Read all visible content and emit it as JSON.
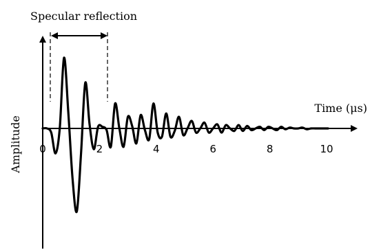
{
  "chart_data": {
    "type": "line",
    "title": "",
    "xlabel": "Time (μs)",
    "ylabel": "Amplitude",
    "xlim": [
      0,
      11.2
    ],
    "ylim": [
      -1,
      1
    ],
    "x_ticks": [
      "0",
      "2",
      "4",
      "6",
      "8",
      "10"
    ],
    "grid": false,
    "legend": "none",
    "annotation": {
      "text": "Specular reflection",
      "x_start": 0.3,
      "x_end": 2.3
    },
    "series": [
      {
        "x": [
          0,
          0.15,
          0.3,
          0.45,
          0.6,
          0.75,
          0.9,
          1.05,
          1.2,
          1.35,
          1.5,
          1.65,
          1.8,
          1.95,
          2.1,
          2.25,
          2.4,
          2.55,
          2.7,
          2.85,
          3.0,
          3.15,
          3.3,
          3.45,
          3.6,
          3.75,
          3.9,
          4.05,
          4.2,
          4.35,
          4.5,
          4.65,
          4.8,
          4.95,
          5.1,
          5.25,
          5.4,
          5.55,
          5.7,
          5.85,
          6.0,
          6.15,
          6.3,
          6.45,
          6.6,
          6.75,
          6.9,
          7.05,
          7.2,
          7.35,
          7.5,
          7.65,
          7.8,
          7.95,
          8.1,
          8.25,
          8.4,
          8.55,
          8.7,
          8.85,
          9.0,
          9.15,
          9.3,
          9.45,
          9.6,
          9.75,
          9.9,
          10.05
        ],
        "y": [
          0,
          0,
          -0.05,
          -0.3,
          0,
          0.85,
          0.2,
          -0.6,
          -1.0,
          -0.3,
          0.55,
          0.05,
          -0.25,
          0.02,
          0.02,
          -0.02,
          -0.22,
          0.3,
          0.0,
          -0.22,
          0.14,
          0.03,
          -0.18,
          0.16,
          -0.02,
          -0.13,
          0.3,
          -0.05,
          -0.1,
          0.18,
          -0.1,
          -0.03,
          0.14,
          -0.08,
          0.0,
          0.09,
          -0.05,
          0.0,
          0.07,
          -0.05,
          0.0,
          0.05,
          -0.05,
          0.04,
          0.0,
          -0.03,
          0.04,
          -0.03,
          0.03,
          -0.02,
          0.0,
          0.02,
          -0.02,
          0.02,
          0.0,
          -0.02,
          0.02,
          -0.01,
          0.01,
          0.0,
          0.0,
          0.01,
          -0.01,
          0.0,
          0.0,
          0.0,
          0.0,
          0.0
        ]
      }
    ]
  }
}
